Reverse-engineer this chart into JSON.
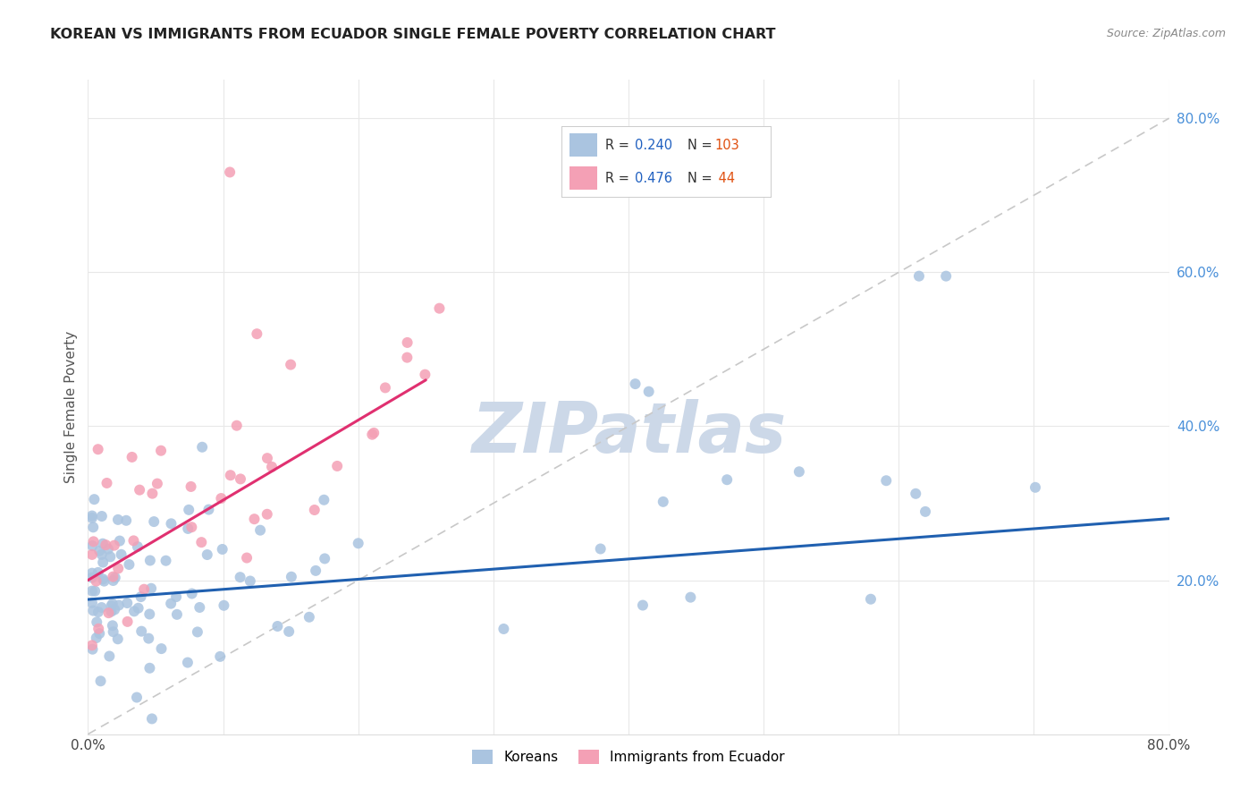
{
  "title": "KOREAN VS IMMIGRANTS FROM ECUADOR SINGLE FEMALE POVERTY CORRELATION CHART",
  "source": "Source: ZipAtlas.com",
  "ylabel": "Single Female Poverty",
  "xlim": [
    0.0,
    0.8
  ],
  "ylim": [
    0.0,
    0.85
  ],
  "legend_R_korean": "0.240",
  "legend_N_korean": "103",
  "legend_R_ecuador": "0.476",
  "legend_N_ecuador": " 44",
  "korean_color": "#aac4e0",
  "ecuador_color": "#f4a0b5",
  "korean_line_color": "#2060b0",
  "ecuador_line_color": "#e03070",
  "diagonal_color": "#c8c8c8",
  "watermark_color": "#ccd8e8",
  "background_color": "#ffffff",
  "legend_text_color": "#333333",
  "legend_R_color": "#2060c0",
  "legend_N_color": "#e05010",
  "ytick_color": "#4a90d9",
  "xtick_color": "#444444",
  "ylabel_color": "#555555",
  "title_color": "#222222",
  "source_color": "#888888",
  "grid_color": "#e8e8e8"
}
